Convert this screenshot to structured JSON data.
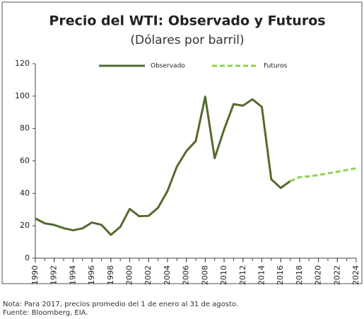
{
  "chart_data": {
    "type": "line",
    "title": "Precio del WTI: Observado y Futuros",
    "subtitle": "(Dólares por barril)",
    "x": [
      1990,
      1991,
      1992,
      1993,
      1994,
      1995,
      1996,
      1997,
      1998,
      1999,
      2000,
      2001,
      2002,
      2003,
      2004,
      2005,
      2006,
      2007,
      2008,
      2009,
      2010,
      2011,
      2012,
      2013,
      2014,
      2015,
      2016,
      2017,
      2018,
      2019,
      2020,
      2021,
      2022,
      2023,
      2024
    ],
    "series": [
      {
        "name": "Observado",
        "color": "#556b2f",
        "dashed": false,
        "values": [
          24.5,
          21.5,
          20.5,
          18.5,
          17.2,
          18.4,
          22.0,
          20.6,
          14.4,
          19.3,
          30.4,
          25.9,
          26.1,
          31.1,
          41.4,
          56.5,
          66.0,
          72.3,
          99.6,
          61.7,
          79.4,
          95.0,
          94.1,
          98.0,
          93.3,
          48.7,
          43.3,
          47.5,
          null,
          null,
          null,
          null,
          null,
          null,
          null
        ]
      },
      {
        "name": "Futuros",
        "color": "#92d050",
        "dashed": true,
        "values": [
          null,
          null,
          null,
          null,
          null,
          null,
          null,
          null,
          null,
          null,
          null,
          null,
          null,
          null,
          null,
          null,
          null,
          null,
          null,
          null,
          null,
          null,
          null,
          null,
          null,
          null,
          null,
          47.5,
          50.0,
          50.5,
          51.3,
          52.3,
          53.3,
          54.4,
          55.5
        ]
      }
    ],
    "xlim": [
      1990,
      2024
    ],
    "xticks": [
      1990,
      1992,
      1994,
      1996,
      1998,
      2000,
      2002,
      2004,
      2006,
      2008,
      2010,
      2012,
      2014,
      2016,
      2018,
      2020,
      2022,
      2024
    ],
    "ylim": [
      0,
      120
    ],
    "yticks": [
      0,
      20,
      40,
      60,
      80,
      100,
      120
    ],
    "notes": [
      "Nota: Para 2017, precios promedio del 1 de enero al 31 de agosto.",
      "Fuente: Bloomberg, EIA."
    ]
  }
}
